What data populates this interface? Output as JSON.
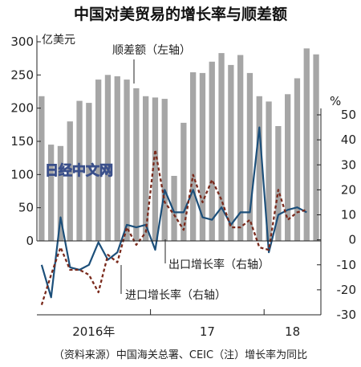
{
  "chart_data": {
    "type": "bar",
    "title": "中国对美贸易的增长率与顺差额",
    "left_axis": {
      "unit": "亿美元",
      "ylim": [
        0,
        300
      ],
      "ticks": [
        0,
        50,
        100,
        150,
        200,
        250,
        300
      ]
    },
    "right_axis": {
      "unit": "%",
      "ylim": [
        -30,
        50
      ],
      "ticks": [
        -30,
        -20,
        -10,
        0,
        10,
        20,
        30,
        40,
        50
      ]
    },
    "x_tick_labels": [
      "2016年",
      "17",
      "18"
    ],
    "series": [
      {
        "name": "顺差额（左轴）",
        "type": "bar",
        "axis": "left",
        "color": "#a6a6a6",
        "values": [
          218,
          145,
          143,
          180,
          211,
          208,
          243,
          250,
          248,
          243,
          230,
          218,
          216,
          214,
          98,
          178,
          254,
          253,
          270,
          283,
          265,
          280,
          253,
          218,
          210,
          173,
          221,
          245,
          290,
          281
        ]
      },
      {
        "name": "出口增长率（右轴）",
        "type": "line",
        "axis": "right",
        "style": "solid",
        "color": "#1c4f7a",
        "values": [
          -10,
          -23,
          9,
          -11,
          -12,
          -10,
          -1,
          -8,
          -5,
          6,
          5,
          6,
          -4,
          20,
          11,
          11,
          20,
          9,
          8,
          13,
          6,
          11,
          11,
          45,
          -5,
          10,
          12,
          13,
          11
        ]
      },
      {
        "name": "进口增长率（右轴）",
        "type": "line",
        "axis": "right",
        "style": "dashed",
        "color": "#7a2a1c",
        "values": [
          -26,
          -14,
          -3,
          -12,
          -12,
          -14,
          -21,
          -6,
          -9,
          5,
          -2,
          3,
          36,
          15,
          10,
          4,
          26,
          15,
          24,
          16,
          5,
          5,
          8,
          -3,
          -4,
          20,
          8,
          11,
          12
        ]
      }
    ],
    "legend_placement": "inline labels",
    "grid": false
  },
  "labels": {
    "left_unit": "亿美元",
    "right_unit": "%",
    "bar_label": "顺差额（左轴）",
    "export_label": "出口增长率（右轴）",
    "import_label": "进口增长率（右轴）",
    "watermark": "日经中文网"
  },
  "footer": "（资料来源）中国海关总署、CEIC（注）增长率为同比"
}
